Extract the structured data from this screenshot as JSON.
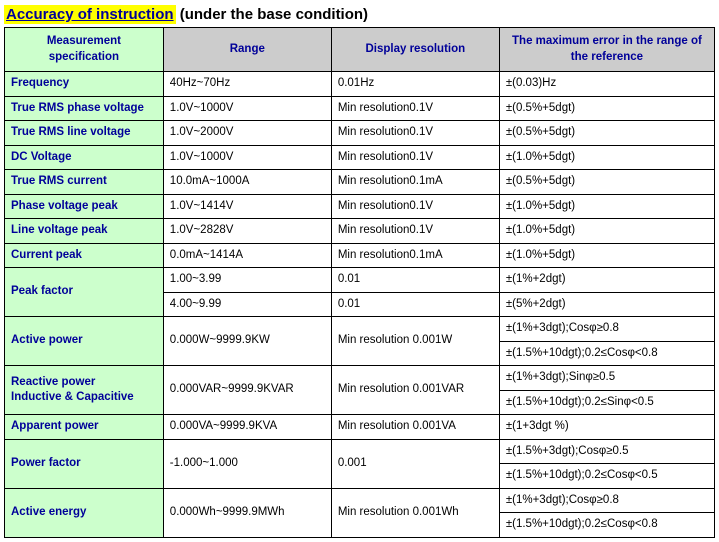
{
  "title": {
    "highlighted": "Accuracy of instruction",
    "rest": " (under the base condition)"
  },
  "headers": {
    "spec": "Measurement specification",
    "range": "Range",
    "resolution": "Display resolution",
    "error": "The maximum error in the range of the reference"
  },
  "rows": [
    {
      "spec": "Frequency",
      "range": "40Hz~70Hz",
      "res": "0.01Hz",
      "err": "±(0.03)Hz"
    },
    {
      "spec": "True RMS phase voltage",
      "range": "1.0V~1000V",
      "res": "Min resolution0.1V",
      "err": "±(0.5%+5dgt)"
    },
    {
      "spec": "True RMS line voltage",
      "range": "1.0V~2000V",
      "res": "Min resolution0.1V",
      "err": "±(0.5%+5dgt)"
    },
    {
      "spec": "DC Voltage",
      "range": "1.0V~1000V",
      "res": "Min resolution0.1V",
      "err": "±(1.0%+5dgt)"
    },
    {
      "spec": "  True RMS current",
      "range": "10.0mA~1000A",
      "res": "Min resolution0.1mA",
      "err": "±(0.5%+5dgt)"
    },
    {
      "spec": "Phase voltage peak",
      "range": "1.0V~1414V",
      "res": "Min resolution0.1V",
      "err": "±(1.0%+5dgt)"
    },
    {
      "spec": "Line voltage peak",
      "range": "1.0V~2828V",
      "res": "Min resolution0.1V",
      "err": "±(1.0%+5dgt)"
    },
    {
      "spec": "Current peak",
      "range": "0.0mA~1414A",
      "res": "Min resolution0.1mA",
      "err": "±(1.0%+5dgt)"
    }
  ],
  "peak_factor": {
    "spec": "Peak factor",
    "r1": {
      "range": "1.00~3.99",
      "res": "0.01",
      "err": "±(1%+2dgt)"
    },
    "r2": {
      "range": "4.00~9.99",
      "res": "0.01",
      "err": "±(5%+2dgt)"
    }
  },
  "active_power": {
    "spec": "  Active power",
    "range": "0.000W~9999.9KW",
    "res": "Min resolution 0.001W",
    "err1": "±(1%+3dgt);Cosφ≥0.8",
    "err2": "±(1.5%+10dgt);0.2≤Cosφ<0.8"
  },
  "reactive_power": {
    "spec": "  Reactive power\n  Inductive & Capacitive",
    "range": "0.000VAR~9999.9KVAR",
    "res": "Min resolution 0.001VAR",
    "err1": "±(1%+3dgt);Sinφ≥0.5",
    "err2": "±(1.5%+10dgt);0.2≤Sinφ<0.5"
  },
  "apparent_power": {
    "spec": "Apparent power",
    "range": "0.000VA~9999.9KVA",
    "res": "Min resolution 0.001VA",
    "err": "±(1+3dgt %)"
  },
  "power_factor": {
    "spec": "Power factor",
    "range": "-1.000~1.000",
    "res": "0.001",
    "err1": "±(1.5%+3dgt);Cosφ≥0.5",
    "err2": "±(1.5%+10dgt);0.2≤Cosφ<0.5"
  },
  "active_energy": {
    "spec": "  Active energy",
    "range": "0.000Wh~9999.9MWh",
    "res": "Min resolution 0.001Wh",
    "err1": "±(1%+3dgt);Cosφ≥0.8",
    "err2": "±(1.5%+10dgt);0.2≤Cosφ<0.8"
  },
  "colors": {
    "header_bg": "#cccccc",
    "spec_bg": "#ccffcc",
    "text_blue": "#000099",
    "highlight_bg": "#ffff00",
    "border": "#000000",
    "cell_bg": "#ffffff"
  }
}
